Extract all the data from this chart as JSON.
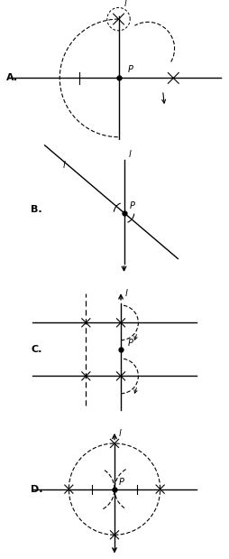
{
  "fig_width": 2.54,
  "fig_height": 6.19,
  "dpi": 100,
  "bg_color": "#f0f0f0",
  "line_color": "black",
  "sections": [
    "A.",
    "B.",
    "C.",
    "D."
  ],
  "section_label_fontsize": 9
}
